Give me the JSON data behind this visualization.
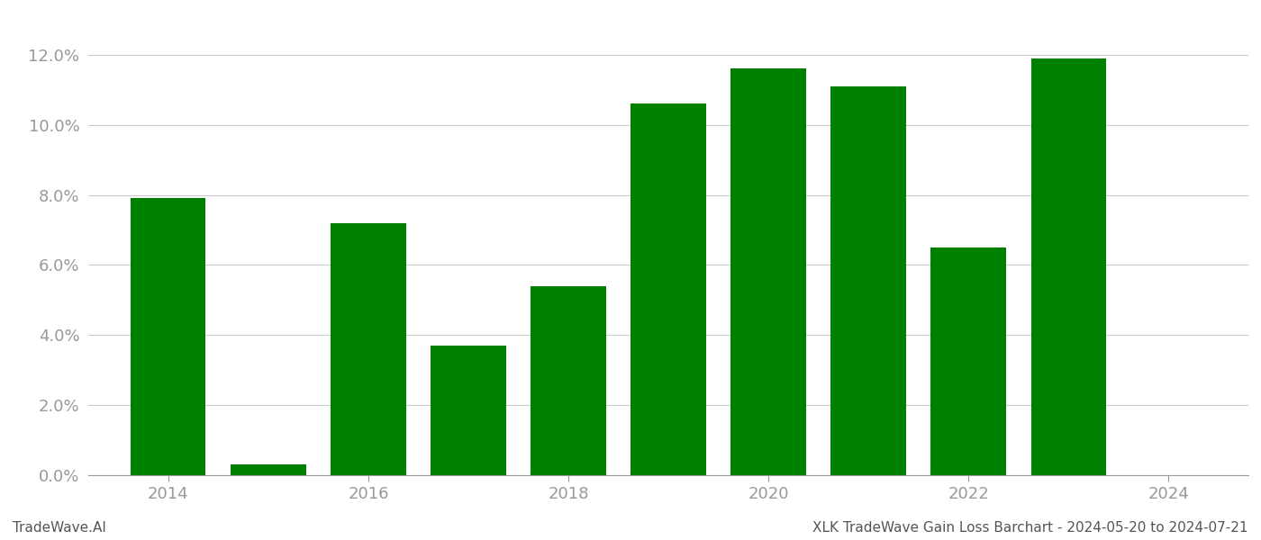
{
  "years": [
    2014,
    2015,
    2016,
    2017,
    2018,
    2019,
    2020,
    2021,
    2022,
    2023,
    2024
  ],
  "values": [
    0.079,
    0.003,
    0.072,
    0.037,
    0.054,
    0.106,
    0.116,
    0.111,
    0.065,
    0.119,
    null
  ],
  "bar_color": "#008000",
  "background_color": "#ffffff",
  "ylabel_ticks": [
    0.0,
    0.02,
    0.04,
    0.06,
    0.08,
    0.1,
    0.12
  ],
  "ytick_labels": [
    "0.0%",
    "2.0%",
    "4.0%",
    "6.0%",
    "8.0%",
    "10.0%",
    "12.0%"
  ],
  "xtick_values": [
    2014,
    2016,
    2018,
    2020,
    2022,
    2024
  ],
  "xtick_labels": [
    "2014",
    "2016",
    "2018",
    "2020",
    "2022",
    "2024"
  ],
  "xlim": [
    2013.2,
    2024.8
  ],
  "ylim": [
    0,
    0.131
  ],
  "footer_left": "TradeWave.AI",
  "footer_right": "XLK TradeWave Gain Loss Barchart - 2024-05-20 to 2024-07-21",
  "bar_width": 0.75,
  "grid_color": "#cccccc",
  "tick_color": "#999999",
  "text_color": "#555555",
  "footer_fontsize": 11,
  "tick_fontsize": 13
}
